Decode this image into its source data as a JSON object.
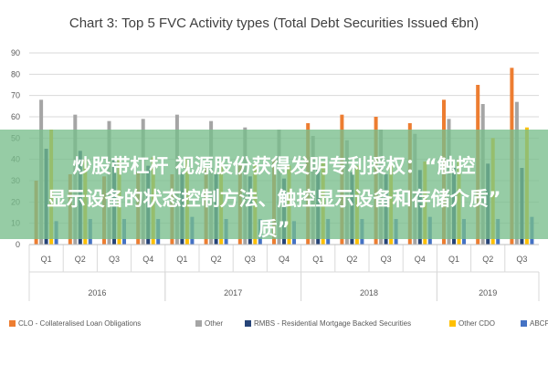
{
  "chart_data": {
    "type": "bar",
    "title": "Chart 3: Top 5 FVC Activity types (Total Debt Securities Issued €bn)",
    "categories": [
      "Q1",
      "Q2",
      "Q3",
      "Q4",
      "Q1",
      "Q2",
      "Q3",
      "Q4",
      "Q1",
      "Q2",
      "Q3",
      "Q4",
      "Q1",
      "Q2",
      "Q3"
    ],
    "years": [
      {
        "label": "2016",
        "start": 0,
        "end": 3
      },
      {
        "label": "2017",
        "start": 4,
        "end": 7
      },
      {
        "label": "2018",
        "start": 8,
        "end": 11
      },
      {
        "label": "2019",
        "start": 12,
        "end": 14
      }
    ],
    "ylim": [
      0,
      90
    ],
    "yticks": [
      0,
      10,
      20,
      30,
      40,
      50,
      60,
      70,
      80,
      90
    ],
    "grid": true,
    "legend_position": "bottom",
    "series": [
      {
        "name": "CLO - Collateralised Loan Obligations",
        "color": "#ED7D31",
        "values": [
          30,
          33,
          32,
          34,
          33,
          36,
          38,
          40,
          57,
          61,
          60,
          57,
          68,
          75,
          83
        ]
      },
      {
        "name": "Other",
        "color": "#A5A5A5",
        "values": [
          68,
          61,
          58,
          59,
          61,
          58,
          55,
          54,
          51,
          49,
          54,
          52,
          59,
          66,
          67
        ]
      },
      {
        "name": "RMBS - Residential Mortgage Backed Securities",
        "color": "#264478",
        "values": [
          45,
          44,
          40,
          37,
          34,
          33,
          32,
          31,
          36,
          34,
          33,
          35,
          36,
          38,
          36
        ]
      },
      {
        "name": "Other CDO",
        "color": "#FFC000",
        "values": [
          54,
          40,
          40,
          41,
          40,
          39,
          38,
          37,
          39,
          37,
          38,
          39,
          40,
          50,
          55
        ]
      },
      {
        "name": "ABCP",
        "color": "#4472C4",
        "values": [
          11,
          12,
          12,
          12,
          13,
          12,
          12,
          11,
          12,
          12,
          12,
          13,
          12,
          12,
          13
        ]
      }
    ]
  },
  "overlay": {
    "line1": "炒股带杠杆 视源股份获得发明专利授权：“触控",
    "line2": "显示设备的状态控制方法、触控显示设备和存储介质”",
    "line3": "质”"
  }
}
